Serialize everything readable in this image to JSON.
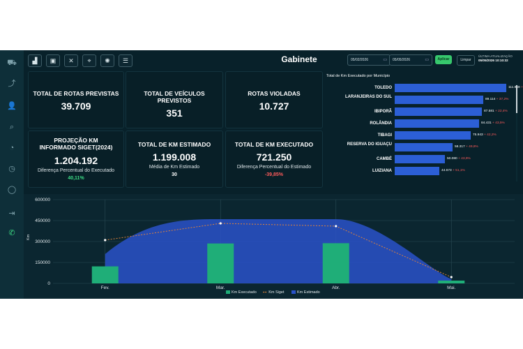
{
  "header": {
    "title": "Gabinete",
    "date_from": "05/02/2026",
    "date_to": "05/05/2026",
    "apply_label": "Aplicar",
    "clear_label": "Limpar",
    "last_update_label": "ÚLTIMA ATUALIZAÇÃO",
    "last_update_value": "05/05/2026 10:10:32"
  },
  "kpis": {
    "rotas_previstas": {
      "label": "TOTAL DE ROTAS PREVISTAS",
      "value": "39.709"
    },
    "veiculos_previstos": {
      "label": "TOTAL DE VEÍCULOS PREVISTOS",
      "value": "351"
    },
    "rotas_violadas": {
      "label": "ROTAS VIOLADAS",
      "value": "10.727"
    },
    "projecao": {
      "label": "PROJEÇÃO KM INFORMADO SIGET(2024)",
      "value": "1.204.192",
      "sub": "Diferença Percentual do Executado",
      "sub_value": "40,11%",
      "sub_color": "#3ddc84"
    },
    "km_estimado": {
      "label": "TOTAL DE KM ESTIMADO",
      "value": "1.199.008",
      "sub": "Média de Km Estimado",
      "sub_value": "30",
      "sub_color": "#ffffff"
    },
    "km_executado": {
      "label": "TOTAL DE KM EXECUTADO",
      "value": "721.250",
      "sub": "Diferença Percentual do Estimado",
      "sub_value": "-39,85%",
      "sub_color": "#ff5b5b"
    }
  },
  "municipios": {
    "title": "Total de Km Executado por Município",
    "items": [
      {
        "name": "TOLEDO",
        "value_text": "111.868",
        "pct": "+ 29,1%",
        "value": 111868
      },
      {
        "name": "LARANJEIRAS DO SUL",
        "value_text": "89.114",
        "pct": "+ 37,2%",
        "value": 89114
      },
      {
        "name": "IBIPORÃ",
        "value_text": "87.581",
        "pct": "+ 22,4%",
        "value": 87581
      },
      {
        "name": "ROLÂNDIA",
        "value_text": "84.431",
        "pct": "+ 43,5%",
        "value": 84431
      },
      {
        "name": "TIBAGI",
        "value_text": "75.943",
        "pct": "+ 42,2%",
        "value": 75943
      },
      {
        "name": "RESERVA DO IGUAÇU",
        "value_text": "58.317",
        "pct": "+ 49,8%",
        "value": 58317
      },
      {
        "name": "CAMBÉ",
        "value_text": "50.080",
        "pct": "+ 43,9%",
        "value": 50080
      },
      {
        "name": "LUIZIANA",
        "value_text": "44.673",
        "pct": "+ 51,1%",
        "value": 44673
      }
    ]
  },
  "chart_data": {
    "type": "bar",
    "categories": [
      "Fev.",
      "Mar.",
      "Abr.",
      "Mai."
    ],
    "ylabel": "Km",
    "ylim": [
      0,
      600000
    ],
    "yticks": [
      "0",
      "150000",
      "300000",
      "450000",
      "600000"
    ],
    "series": [
      {
        "name": "Km Executado",
        "type": "bar",
        "color": "#1fae78",
        "values": [
          122000,
          286000,
          288000,
          20000
        ]
      },
      {
        "name": "Km Siget",
        "type": "line",
        "color": "#e0823a",
        "values": [
          310000,
          430000,
          410000,
          45000
        ]
      },
      {
        "name": "Km Estimado",
        "type": "area",
        "color": "#2a52c9",
        "values": [
          210000,
          460000,
          460000,
          30000
        ]
      }
    ],
    "legend_position": "bottom"
  },
  "sidebar_icons": [
    "truck-icon",
    "route-icon",
    "user-icon",
    "search-route-icon",
    "chart-icon",
    "clock-icon",
    "chat-icon",
    "exit-icon",
    "whatsapp-icon"
  ]
}
